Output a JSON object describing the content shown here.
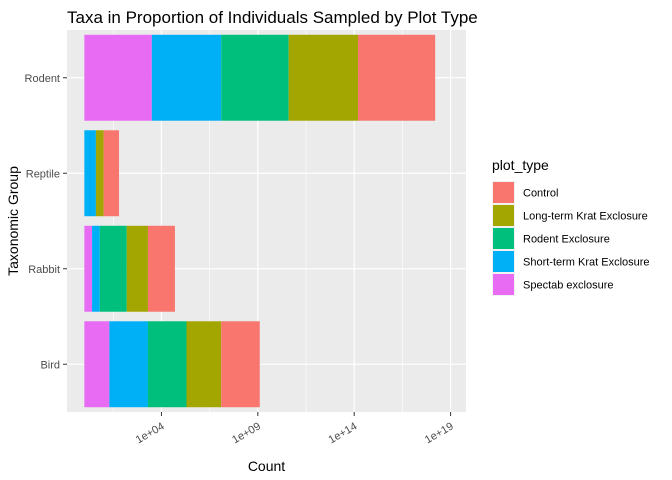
{
  "chart_data": {
    "type": "bar",
    "orientation": "horizontal",
    "stacked": true,
    "title": "Taxa in Proportion of Individuals Sampled by Plot Type",
    "xlabel": "Count",
    "ylabel": "Taxonomic Group",
    "x_scale": "log10",
    "x_ticks": [
      "1e+04",
      "1e+09",
      "1e+14",
      "1e+19"
    ],
    "x_tick_values": [
      4,
      9,
      14,
      19
    ],
    "x_range_log10": [
      -0.9,
      19.8
    ],
    "categories": [
      "Bird",
      "Rabbit",
      "Reptile",
      "Rodent"
    ],
    "legend_title": "plot_type",
    "legend_position": "right",
    "grid": true,
    "series": [
      {
        "name": "Spectab exclosure",
        "color": "#E76BF3",
        "log10_values": [
          1.3,
          0.4,
          0.0,
          3.5
        ]
      },
      {
        "name": "Short-term Krat Exclosure",
        "color": "#00B0F6",
        "log10_values": [
          2.0,
          0.4,
          0.6,
          3.6
        ]
      },
      {
        "name": "Rodent Exclosure",
        "color": "#00BF7D",
        "log10_values": [
          2.0,
          1.4,
          0.0,
          3.5
        ]
      },
      {
        "name": "Long-term Krat Exclosure",
        "color": "#A3A500",
        "log10_values": [
          1.8,
          1.1,
          0.4,
          3.6
        ]
      },
      {
        "name": "Control",
        "color": "#F8766D",
        "log10_values": [
          2.0,
          1.4,
          0.8,
          4.0
        ]
      }
    ],
    "legend_order": [
      "Control",
      "Long-term Krat Exclosure",
      "Rodent Exclosure",
      "Short-term Krat Exclosure",
      "Spectab exclosure"
    ]
  }
}
